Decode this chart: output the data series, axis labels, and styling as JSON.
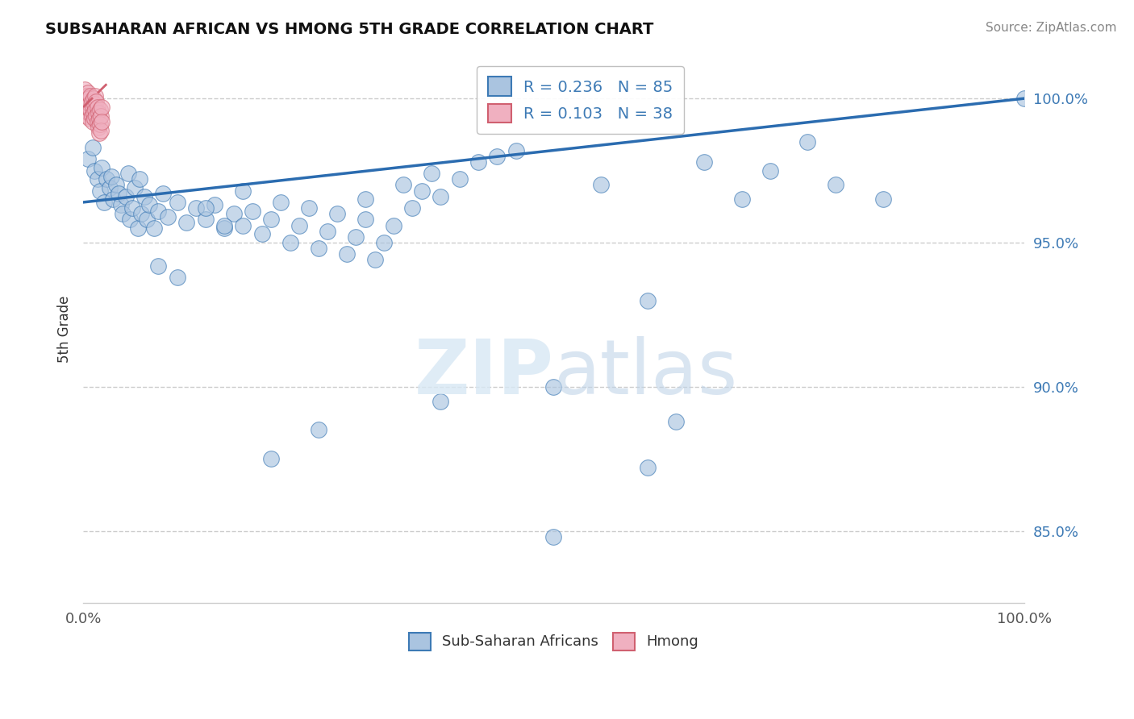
{
  "title": "SUBSAHARAN AFRICAN VS HMONG 5TH GRADE CORRELATION CHART",
  "source": "Source: ZipAtlas.com",
  "ylabel": "5th Grade",
  "legend_label1": "Sub-Saharan Africans",
  "legend_label2": "Hmong",
  "xlim": [
    0.0,
    1.0
  ],
  "ylim": [
    0.825,
    1.015
  ],
  "yticks": [
    0.85,
    0.9,
    0.95,
    1.0
  ],
  "ytick_labels": [
    "85.0%",
    "90.0%",
    "95.0%",
    "100.0%"
  ],
  "blue_R": "0.236",
  "blue_N": "85",
  "pink_R": "0.103",
  "pink_N": "38",
  "blue_color": "#aac4e0",
  "blue_edge": "#3d7ab5",
  "pink_color": "#f0b0c0",
  "pink_edge": "#d06070",
  "blue_trend_color": "#2b6cb0",
  "pink_trend_color": "#d06070",
  "blue_scatter_x": [
    0.005,
    0.01,
    0.012,
    0.015,
    0.018,
    0.02,
    0.022,
    0.025,
    0.028,
    0.03,
    0.032,
    0.035,
    0.038,
    0.04,
    0.042,
    0.045,
    0.048,
    0.05,
    0.052,
    0.055,
    0.058,
    0.06,
    0.062,
    0.065,
    0.068,
    0.07,
    0.075,
    0.08,
    0.085,
    0.09,
    0.1,
    0.11,
    0.12,
    0.13,
    0.14,
    0.15,
    0.16,
    0.17,
    0.18,
    0.19,
    0.2,
    0.21,
    0.22,
    0.23,
    0.24,
    0.25,
    0.26,
    0.27,
    0.28,
    0.29,
    0.3,
    0.31,
    0.32,
    0.33,
    0.34,
    0.35,
    0.36,
    0.37,
    0.38,
    0.4,
    0.42,
    0.44,
    0.46,
    0.5,
    0.55,
    0.6,
    0.63,
    0.66,
    0.7,
    0.73,
    0.77,
    0.8,
    0.85,
    0.6,
    0.5,
    0.38,
    0.3,
    0.25,
    0.2,
    0.17,
    0.15,
    0.13,
    0.1,
    0.08,
    1.0
  ],
  "blue_scatter_y": [
    0.979,
    0.983,
    0.975,
    0.972,
    0.968,
    0.976,
    0.964,
    0.972,
    0.969,
    0.973,
    0.965,
    0.97,
    0.967,
    0.963,
    0.96,
    0.966,
    0.974,
    0.958,
    0.962,
    0.969,
    0.955,
    0.972,
    0.96,
    0.966,
    0.958,
    0.963,
    0.955,
    0.961,
    0.967,
    0.959,
    0.964,
    0.957,
    0.962,
    0.958,
    0.963,
    0.955,
    0.96,
    0.956,
    0.961,
    0.953,
    0.958,
    0.964,
    0.95,
    0.956,
    0.962,
    0.948,
    0.954,
    0.96,
    0.946,
    0.952,
    0.958,
    0.944,
    0.95,
    0.956,
    0.97,
    0.962,
    0.968,
    0.974,
    0.966,
    0.972,
    0.978,
    0.98,
    0.982,
    0.9,
    0.97,
    0.872,
    0.888,
    0.978,
    0.965,
    0.975,
    0.985,
    0.97,
    0.965,
    0.93,
    0.848,
    0.895,
    0.965,
    0.885,
    0.875,
    0.968,
    0.956,
    0.962,
    0.938,
    0.942,
    1.0
  ],
  "pink_scatter_x": [
    0.002,
    0.002,
    0.003,
    0.003,
    0.004,
    0.004,
    0.005,
    0.005,
    0.006,
    0.006,
    0.007,
    0.007,
    0.008,
    0.008,
    0.009,
    0.009,
    0.01,
    0.01,
    0.011,
    0.011,
    0.012,
    0.012,
    0.013,
    0.013,
    0.014,
    0.014,
    0.015,
    0.015,
    0.016,
    0.016,
    0.017,
    0.017,
    0.018,
    0.018,
    0.019,
    0.019,
    0.02,
    0.02
  ],
  "pink_scatter_y": [
    1.003,
    0.998,
    1.001,
    0.996,
    0.999,
    0.994,
    1.002,
    0.997,
    1.0,
    0.995,
    0.998,
    0.993,
    1.001,
    0.996,
    0.999,
    0.994,
    0.997,
    0.992,
    1.0,
    0.995,
    0.998,
    0.993,
    1.001,
    0.996,
    0.999,
    0.994,
    0.997,
    0.992,
    0.995,
    0.99,
    0.993,
    0.988,
    0.996,
    0.991,
    0.994,
    0.989,
    0.997,
    0.992
  ],
  "blue_trendline": [
    [
      0.0,
      0.964
    ],
    [
      1.0,
      1.0
    ]
  ],
  "pink_trendline": [
    [
      0.0,
      0.997
    ],
    [
      0.025,
      1.005
    ]
  ],
  "background_color": "#ffffff",
  "grid_color": "#cccccc",
  "marker_size": 200
}
